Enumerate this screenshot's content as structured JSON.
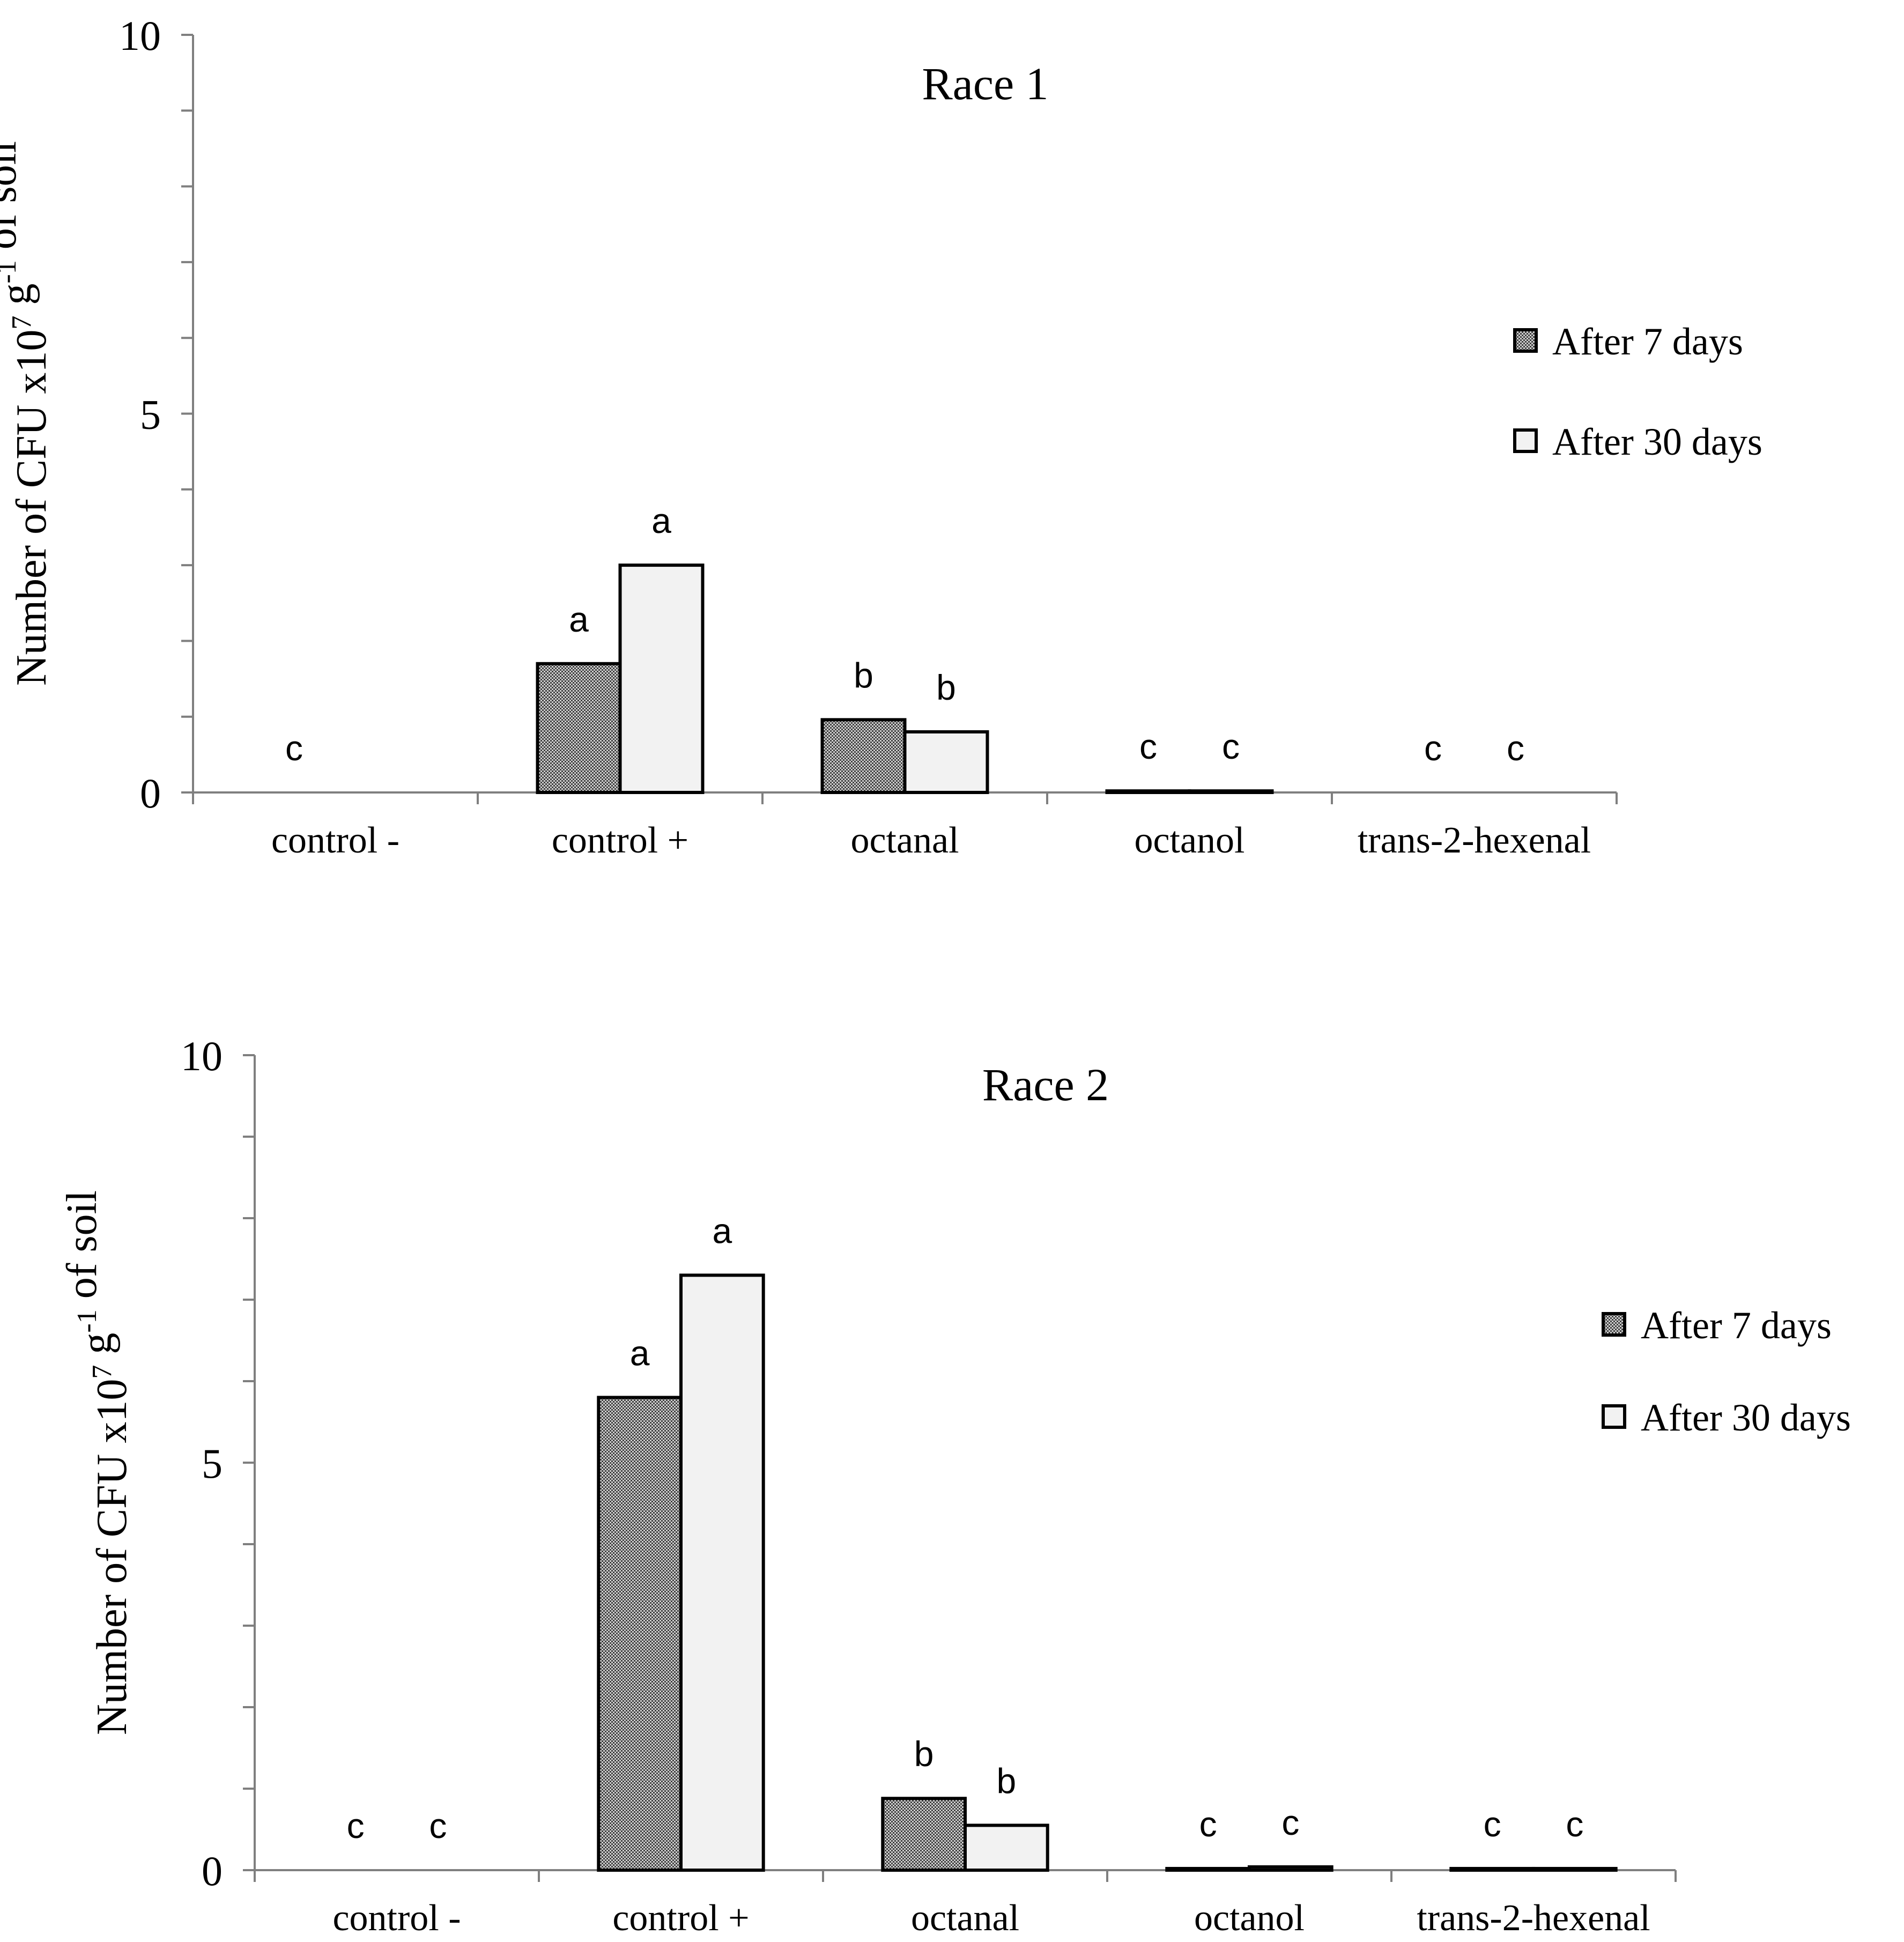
{
  "figure": {
    "chart_data": [
      {
        "type": "bar",
        "title": "Race 1",
        "ylabel_main": "Number of CFU x10",
        "ylabel_sup1": "7",
        "ylabel_mid": " g",
        "ylabel_sup2": "-1",
        "ylabel_end": " of soil",
        "xlabel": "",
        "ylim": [
          0,
          10
        ],
        "y_ticks": [
          "0",
          "5",
          "10"
        ],
        "minor_tick_step": 1,
        "grid": false,
        "legend_position": "right",
        "categories": [
          "control -",
          "control +",
          "octanal",
          "octanol",
          "trans-2-hexenal"
        ],
        "series": [
          {
            "name": "After 7 days",
            "values": [
              0,
              1.7,
              0.96,
              0.02,
              0
            ],
            "letters": [
              "c",
              "a",
              "b",
              "c",
              "c"
            ]
          },
          {
            "name": "After 30 days",
            "values": [
              0,
              3.0,
              0.8,
              0.02,
              0
            ],
            "letters": [
              "",
              "a",
              "b",
              "c",
              "c"
            ]
          }
        ]
      },
      {
        "type": "bar",
        "title": "Race 2",
        "ylabel_main": "Number of CFU x10",
        "ylabel_sup1": "7",
        "ylabel_mid": " g",
        "ylabel_sup2": "-1",
        "ylabel_end": " of soil",
        "xlabel": "",
        "ylim": [
          0,
          10
        ],
        "y_ticks": [
          "0",
          "5",
          "10"
        ],
        "minor_tick_step": 1,
        "grid": false,
        "legend_position": "right",
        "categories": [
          "control -",
          "control +",
          "octanal",
          "octanol",
          "trans-2-hexenal"
        ],
        "series": [
          {
            "name": "After 7 days",
            "values": [
              0,
              5.8,
              0.88,
              0.02,
              0.02
            ],
            "letters": [
              "c",
              "a",
              "b",
              "c",
              "c"
            ]
          },
          {
            "name": "After 30 days",
            "values": [
              0,
              7.3,
              0.55,
              0.04,
              0.02
            ],
            "letters": [
              "c",
              "a",
              "b",
              "c",
              "c"
            ]
          }
        ]
      }
    ],
    "colors": {
      "axis": "#7f7f7f",
      "bar_stroke": "#000000",
      "series_light_fill": "#f2f2f2",
      "hatch_dark": "#404040",
      "hatch_light": "#cfcfcf",
      "text": "#000000"
    }
  }
}
